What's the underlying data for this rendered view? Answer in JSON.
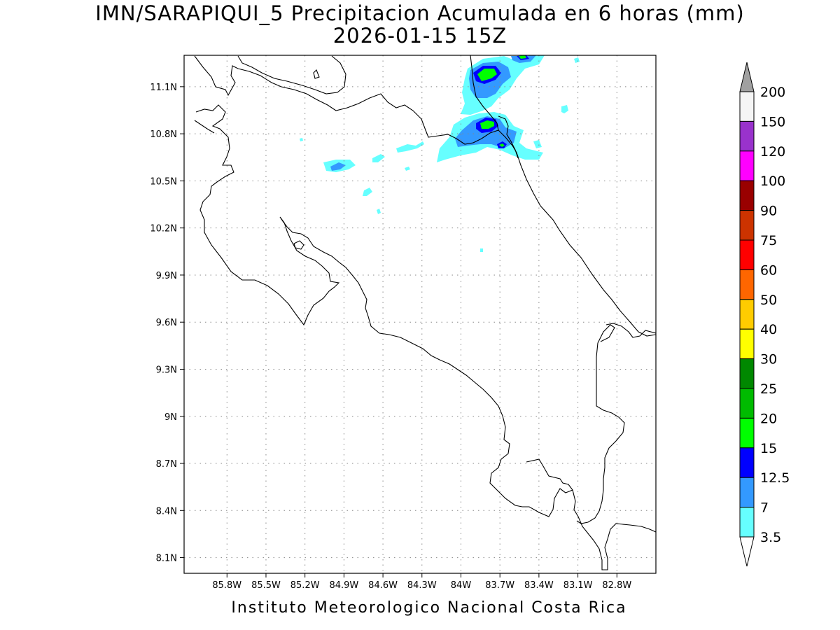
{
  "title_line1": "IMN/SARAPIQUI_5 Precipitacion Acumulada en 6 horas (mm)",
  "title_line2": "2026-01-15 15Z",
  "footer": "Instituto Meteorologico Nacional Costa Rica",
  "map": {
    "lon_min": -86.13,
    "lon_max": -82.5,
    "lat_min": 8.0,
    "lat_max": 11.3,
    "lon_ticks": [
      {
        "value": -85.8,
        "label": "85.8W"
      },
      {
        "value": -85.5,
        "label": "85.5W"
      },
      {
        "value": -85.2,
        "label": "85.2W"
      },
      {
        "value": -84.9,
        "label": "84.9W"
      },
      {
        "value": -84.6,
        "label": "84.6W"
      },
      {
        "value": -84.3,
        "label": "84.3W"
      },
      {
        "value": -84.0,
        "label": "84W"
      },
      {
        "value": -83.7,
        "label": "83.7W"
      },
      {
        "value": -83.4,
        "label": "83.4W"
      },
      {
        "value": -83.1,
        "label": "83.1W"
      },
      {
        "value": -82.8,
        "label": "82.8W"
      }
    ],
    "lat_ticks": [
      {
        "value": 11.1,
        "label": "11.1N"
      },
      {
        "value": 10.8,
        "label": "10.8N"
      },
      {
        "value": 10.5,
        "label": "10.5N"
      },
      {
        "value": 10.2,
        "label": "10.2N"
      },
      {
        "value": 9.9,
        "label": "9.9N"
      },
      {
        "value": 9.6,
        "label": "9.6N"
      },
      {
        "value": 9.3,
        "label": "9.3N"
      },
      {
        "value": 9.0,
        "label": "9N"
      },
      {
        "value": 8.7,
        "label": "8.7N"
      },
      {
        "value": 8.4,
        "label": "8.4N"
      },
      {
        "value": 8.1,
        "label": "8.1N"
      }
    ],
    "grid": true
  },
  "colorbar": {
    "orientation": "vertical",
    "levels": [
      {
        "label": "200",
        "color": "#a0a0a0"
      },
      {
        "label": "150",
        "color": "#f5f5f5"
      },
      {
        "label": "120",
        "color": "#9932cc"
      },
      {
        "label": "100",
        "color": "#ff00ff"
      },
      {
        "label": "90",
        "color": "#990000"
      },
      {
        "label": "75",
        "color": "#cc3300"
      },
      {
        "label": "60",
        "color": "#ff0000"
      },
      {
        "label": "50",
        "color": "#ff6600"
      },
      {
        "label": "40",
        "color": "#ffcc00"
      },
      {
        "label": "30",
        "color": "#ffff00"
      },
      {
        "label": "25",
        "color": "#008800"
      },
      {
        "label": "20",
        "color": "#00bb00"
      },
      {
        "label": "15",
        "color": "#00ff00"
      },
      {
        "label": "12.5",
        "color": "#0000ff"
      },
      {
        "label": "7",
        "color": "#3399ff"
      },
      {
        "label": "3.5",
        "color": "#66ffff"
      }
    ],
    "under_color": "#ffffff"
  },
  "precipitation_colors": {
    "light": "#66ffff",
    "moderate": "#3399ff",
    "heavy": "#0000ff",
    "very_heavy": "#00ff00",
    "extreme": "#00bb00"
  }
}
